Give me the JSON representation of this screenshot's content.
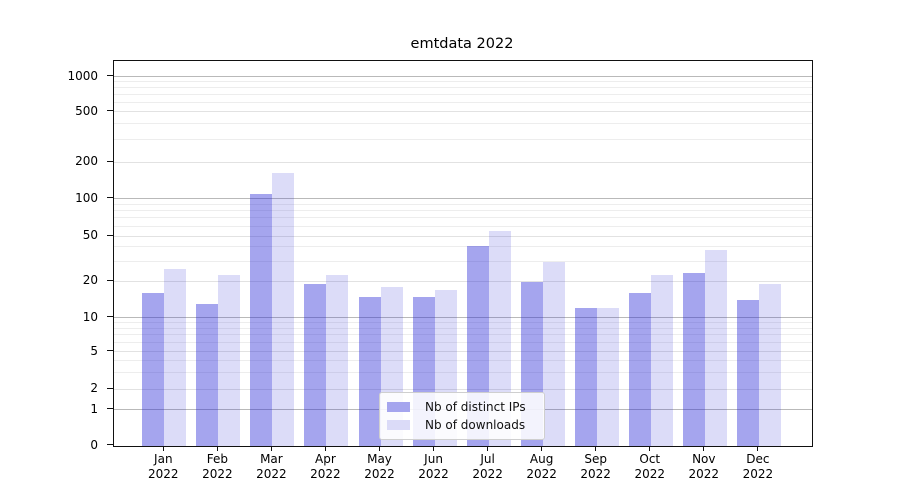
{
  "chart": {
    "title": "emtdata 2022",
    "y_axis": {
      "tick_labels": [
        "0",
        "1",
        "2",
        "5",
        "10",
        "20",
        "50",
        "100",
        "200",
        "500",
        "1000"
      ]
    },
    "x_axis": {
      "tick_labels_line1": [
        "Jan",
        "Feb",
        "Mar",
        "Apr",
        "May",
        "Jun",
        "Jul",
        "Aug",
        "Sep",
        "Oct",
        "Nov",
        "Dec"
      ],
      "tick_labels_line2": [
        "2022",
        "2022",
        "2022",
        "2022",
        "2022",
        "2022",
        "2022",
        "2022",
        "2022",
        "2022",
        "2022",
        "2022"
      ]
    },
    "legend": {
      "items": [
        {
          "label": "Nb of distinct IPs",
          "swatch_color": "#a5a5ee"
        },
        {
          "label": "Nb of downloads",
          "swatch_color": "#dbdbf8"
        }
      ]
    },
    "colors": {
      "bar_distinct_ips": "#a5a5ee",
      "bar_downloads": "#dbdbf8",
      "grid_major": "#b9b9b9",
      "grid_minor": "#ededed",
      "axis": "#111111"
    }
  },
  "chart_data": {
    "type": "bar",
    "title": "emtdata 2022",
    "categories": [
      "Jan 2022",
      "Feb 2022",
      "Mar 2022",
      "Apr 2022",
      "May 2022",
      "Jun 2022",
      "Jul 2022",
      "Aug 2022",
      "Sep 2022",
      "Oct 2022",
      "Nov 2022",
      "Dec 2022"
    ],
    "series": [
      {
        "name": "Nb of distinct IPs",
        "values": [
          16,
          13,
          110,
          19,
          15,
          15,
          41,
          20,
          12,
          16,
          24,
          14
        ]
      },
      {
        "name": "Nb of downloads",
        "values": [
          26,
          23,
          165,
          23,
          18,
          17,
          55,
          30,
          12,
          23,
          38,
          19
        ]
      }
    ],
    "xlabel": "",
    "ylabel": "",
    "yscale": "symlog",
    "yticks": [
      0,
      1,
      2,
      5,
      10,
      20,
      50,
      100,
      200,
      500,
      1000
    ],
    "ylim": [
      0,
      1350
    ],
    "grid": true,
    "legend_position": "lower center"
  }
}
